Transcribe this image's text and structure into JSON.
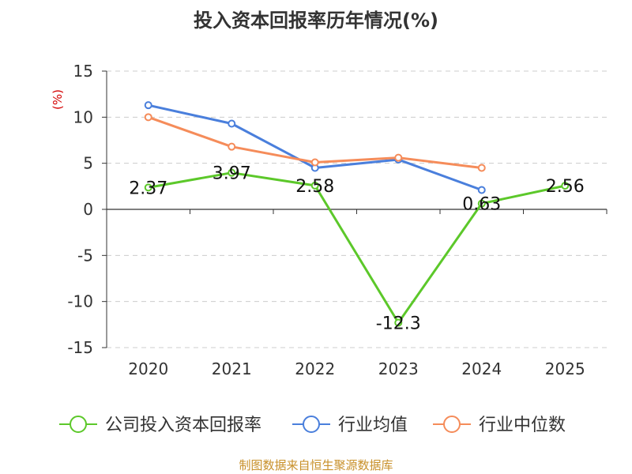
{
  "chart_data": {
    "type": "line",
    "title": "投入资本回报率历年情况(%)",
    "ylabel": "(%)",
    "categories": [
      "2020",
      "2021",
      "2022",
      "2023",
      "2024",
      "2025"
    ],
    "ylim": [
      -15,
      15
    ],
    "yticks": [
      15,
      10,
      5,
      0,
      -5,
      -10,
      -15
    ],
    "grid": true,
    "legend_position": "bottom",
    "series": [
      {
        "name": "公司投入资本回报率",
        "color": "#5cc82a",
        "values": [
          2.37,
          3.97,
          2.58,
          -12.3,
          0.63,
          2.56
        ],
        "labels": [
          "2.37",
          "3.97",
          "2.58",
          "-12.3",
          "0.63",
          "2.56"
        ]
      },
      {
        "name": "行业均值",
        "color": "#4a7fdc",
        "values": [
          11.3,
          9.3,
          4.5,
          5.4,
          2.1,
          null
        ]
      },
      {
        "name": "行业中位数",
        "color": "#f58c5a",
        "values": [
          10.0,
          6.8,
          5.1,
          5.6,
          4.5,
          null
        ]
      }
    ]
  },
  "source": "制图数据来自恒生聚源数据库"
}
